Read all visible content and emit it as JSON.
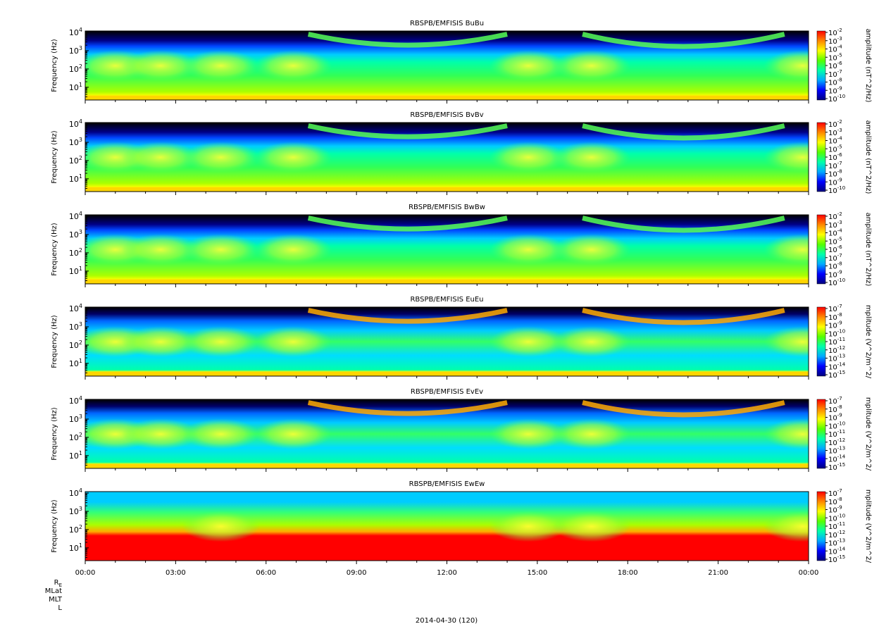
{
  "chart_data": {
    "type": "heatmap",
    "date_label": "2014-04-30 (120)",
    "x_axis": {
      "tick_labels": [
        "00:00",
        "03:00",
        "06:00",
        "09:00",
        "12:00",
        "15:00",
        "18:00",
        "21:00",
        "00:00"
      ],
      "row_labels": [
        "R_E",
        "MLat",
        "MLT",
        "L"
      ]
    },
    "panels": [
      {
        "title": "RBSPB/EMFISIS  BuBu",
        "ylabel": "Frequency (Hz)",
        "yscale": "log",
        "ylim": [
          2,
          12000
        ],
        "y_ticks": [
          "10^4",
          "10^3",
          "10^2",
          "10^1"
        ],
        "colorbar_label": "amplitude (nT^2/Hz)",
        "colorbar_ticks": [
          "10^-2",
          "10^-3",
          "10^-4",
          "10^-5",
          "10^-6",
          "10^-7",
          "10^-8",
          "10^-9",
          "10^-10"
        ],
        "kind": "B"
      },
      {
        "title": "RBSPB/EMFISIS  BvBv",
        "ylabel": "Frequency (Hz)",
        "yscale": "log",
        "ylim": [
          2,
          12000
        ],
        "y_ticks": [
          "10^4",
          "10^3",
          "10^2",
          "10^1"
        ],
        "colorbar_label": "amplitude (nT^2/Hz)",
        "colorbar_ticks": [
          "10^-2",
          "10^-3",
          "10^-4",
          "10^-5",
          "10^-6",
          "10^-7",
          "10^-8",
          "10^-9",
          "10^-10"
        ],
        "kind": "B"
      },
      {
        "title": "RBSPB/EMFISIS  BwBw",
        "ylabel": "Frequency (Hz)",
        "yscale": "log",
        "ylim": [
          2,
          12000
        ],
        "y_ticks": [
          "10^4",
          "10^3",
          "10^2",
          "10^1"
        ],
        "colorbar_label": "amplitude (nT^2/Hz)",
        "colorbar_ticks": [
          "10^-2",
          "10^-3",
          "10^-4",
          "10^-5",
          "10^-6",
          "10^-7",
          "10^-8",
          "10^-9",
          "10^-10"
        ],
        "kind": "B"
      },
      {
        "title": "RBSPB/EMFISIS  EuEu",
        "ylabel": "Frequency (Hz)",
        "yscale": "log",
        "ylim": [
          2,
          12000
        ],
        "y_ticks": [
          "10^4",
          "10^3",
          "10^2",
          "10^1"
        ],
        "colorbar_label": "mplitude (V^2/m^2/",
        "colorbar_ticks": [
          "10^-7",
          "10^-8",
          "10^-9",
          "10^-10",
          "10^-11",
          "10^-12",
          "10^-13",
          "10^-14",
          "10^-15"
        ],
        "kind": "E"
      },
      {
        "title": "RBSPB/EMFISIS  EvEv",
        "ylabel": "Frequency (Hz)",
        "yscale": "log",
        "ylim": [
          2,
          12000
        ],
        "y_ticks": [
          "10^4",
          "10^3",
          "10^2",
          "10^1"
        ],
        "colorbar_label": "mplitude (V^2/m^2/",
        "colorbar_ticks": [
          "10^-7",
          "10^-8",
          "10^-9",
          "10^-10",
          "10^-11",
          "10^-12",
          "10^-13",
          "10^-14",
          "10^-15"
        ],
        "kind": "E"
      },
      {
        "title": "RBSPB/EMFISIS  EwEw",
        "ylabel": "Frequency (Hz)",
        "yscale": "log",
        "ylim": [
          2,
          12000
        ],
        "y_ticks": [
          "10^4",
          "10^3",
          "10^2",
          "10^1"
        ],
        "colorbar_label": "mplitude (V^2/m^2/",
        "colorbar_ticks": [
          "10^-7",
          "10^-8",
          "10^-9",
          "10^-10",
          "10^-11",
          "10^-12",
          "10^-13",
          "10^-14",
          "10^-15"
        ],
        "kind": "Ew"
      }
    ],
    "colormap": [
      "#000080",
      "#0000ff",
      "#00aaff",
      "#00ffaa",
      "#55ff00",
      "#ffff00",
      "#ff8800",
      "#ff0000"
    ]
  }
}
